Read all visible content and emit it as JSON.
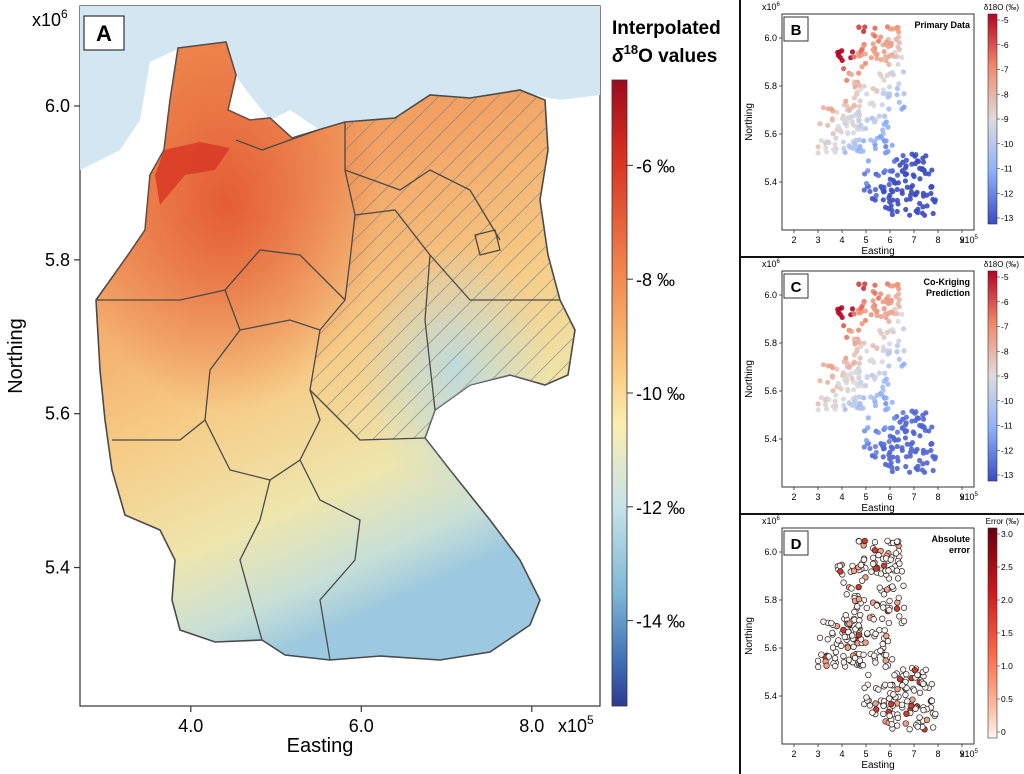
{
  "panel_a": {
    "label": "A",
    "xlabel": "Easting",
    "ylabel": "Northing",
    "x_exponent": "x10",
    "x_exponent_power": "5",
    "y_exponent": "x10",
    "y_exponent_power": "6",
    "colorbar_title_line1": "Interpolated",
    "colorbar_title_line2_prefix": "δ",
    "colorbar_title_line2_sup": "18",
    "colorbar_title_line2_suffix": "O values",
    "colorbar_ticks": [
      "-6 ‰",
      "-8 ‰",
      "-10 ‰",
      "-12 ‰",
      "-14 ‰"
    ]
  },
  "panel_b": {
    "label": "B",
    "title": "Primary Data",
    "colorbar_title": "δ18O (‰)",
    "colorbar_ticks": [
      "-5",
      "-6",
      "-7",
      "-8",
      "-9",
      "-10",
      "-11",
      "-12",
      "-13"
    ]
  },
  "panel_c": {
    "label": "C",
    "title_line1": "Co-Kriging",
    "title_line2": "Prediction",
    "colorbar_title": "δ18O (‰)",
    "colorbar_ticks": [
      "-5",
      "-6",
      "-7",
      "-8",
      "-9",
      "-10",
      "-11",
      "-12",
      "-13"
    ]
  },
  "panel_d": {
    "label": "D",
    "title_line1": "Absolute",
    "title_line2": "error",
    "colorbar_title": "Error (‰)",
    "colorbar_ticks": [
      "3.0",
      "2.5",
      "2.0",
      "1.5",
      "1.0",
      "0.5",
      "0"
    ]
  },
  "small_axes": {
    "xlabel": "Easting",
    "ylabel": "Northing",
    "x_ticks": [
      "2",
      "3",
      "4",
      "5",
      "6",
      "7",
      "8",
      "9"
    ],
    "x_exponent": "x10",
    "x_exponent_power": "5",
    "y_exponent": "x10",
    "y_exponent_power": "6",
    "y_ticks": [
      "6.0",
      "5.8",
      "5.6",
      "5.4"
    ]
  },
  "chart_data": [
    {
      "type": "heatmap",
      "panel": "A",
      "xlabel": "Easting",
      "ylabel": "Northing",
      "x_ticks": [
        4.0,
        6.0,
        8.0
      ],
      "y_ticks": [
        6.0,
        5.8,
        5.6,
        5.4
      ],
      "xlim": [
        2.7,
        8.8
      ],
      "ylim": [
        5.22,
        6.13
      ],
      "colorbar_range": [
        -15.5,
        -4.5
      ],
      "colorbar_ticks": [
        -6,
        -8,
        -10,
        -12,
        -14
      ]
    },
    {
      "type": "scatter",
      "panel": "B",
      "title": "Primary Data",
      "xlim": [
        1.5,
        9.5
      ],
      "ylim": [
        5.2,
        6.1
      ],
      "colorbar_range": [
        -13,
        -5
      ]
    },
    {
      "type": "scatter",
      "panel": "C",
      "title": "Co-Kriging Prediction",
      "xlim": [
        1.5,
        9.5
      ],
      "ylim": [
        5.2,
        6.1
      ],
      "colorbar_range": [
        -13,
        -5
      ]
    },
    {
      "type": "scatter",
      "panel": "D",
      "title": "Absolute error",
      "xlim": [
        1.5,
        9.5
      ],
      "ylim": [
        5.2,
        6.1
      ],
      "colorbar_range": [
        0,
        3.0
      ]
    }
  ]
}
